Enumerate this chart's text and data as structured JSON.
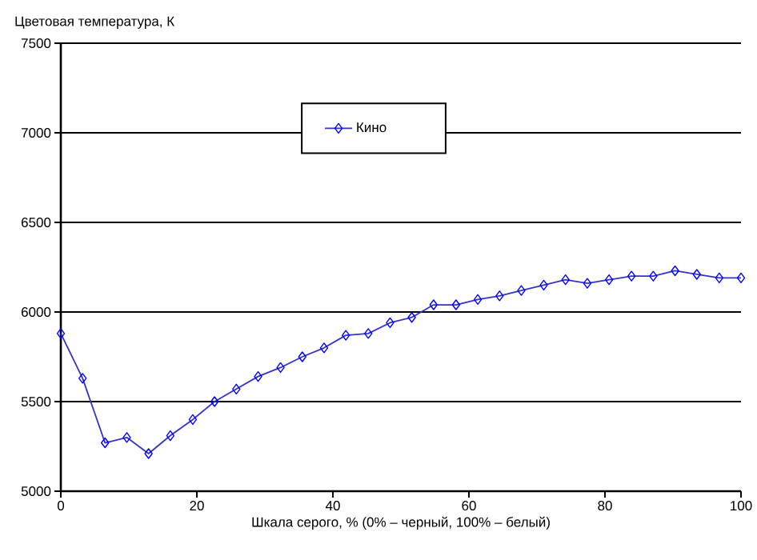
{
  "chart_data": {
    "type": "line",
    "ylabel": "Цветовая температура, К",
    "xlabel": "Шкала серого, % (0% – черный, 100% – белый)",
    "x": [
      0,
      3.2,
      6.5,
      9.7,
      12.9,
      16.1,
      19.4,
      22.6,
      25.8,
      29.0,
      32.3,
      35.5,
      38.7,
      41.9,
      45.2,
      48.4,
      51.6,
      54.8,
      58.1,
      61.3,
      64.5,
      67.7,
      71.0,
      74.2,
      77.4,
      80.6,
      83.9,
      87.1,
      90.3,
      93.5,
      96.8,
      100
    ],
    "series": [
      {
        "name": "Кино",
        "color": "#0000ff",
        "values": [
          5880,
          5630,
          5270,
          5300,
          5210,
          5310,
          5400,
          5500,
          5570,
          5640,
          5690,
          5750,
          5800,
          5870,
          5880,
          5940,
          5970,
          6040,
          6040,
          6070,
          6090,
          6120,
          6150,
          6180,
          6160,
          6180,
          6200,
          6200,
          6230,
          6210,
          6190,
          6190
        ]
      }
    ],
    "xlim": [
      0,
      100
    ],
    "ylim": [
      5000,
      7500
    ],
    "xticks": [
      0,
      20,
      40,
      60,
      80,
      100
    ],
    "yticks": [
      5000,
      5500,
      6000,
      6500,
      7000,
      7500
    ],
    "grid": "y",
    "legend": "top",
    "marker": "diamond",
    "line_style": "solid"
  }
}
